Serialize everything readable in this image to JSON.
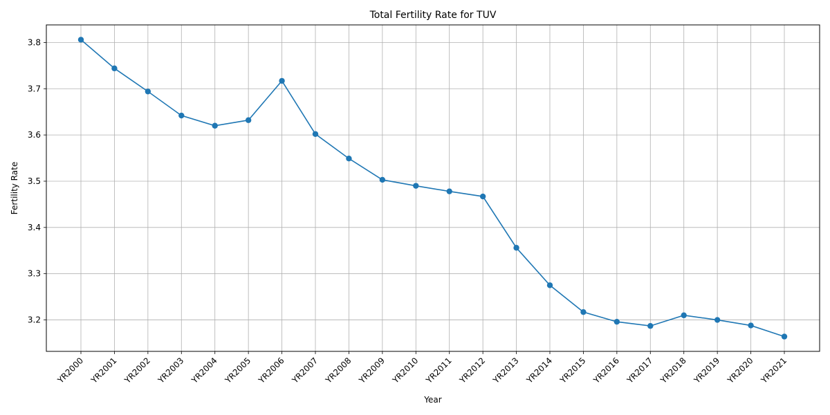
{
  "chart_data": {
    "type": "line",
    "title": "Total Fertility Rate for TUV",
    "xlabel": "Year",
    "ylabel": "Fertility Rate",
    "categories": [
      "YR2000",
      "YR2001",
      "YR2002",
      "YR2003",
      "YR2004",
      "YR2005",
      "YR2006",
      "YR2007",
      "YR2008",
      "YR2009",
      "YR2010",
      "YR2011",
      "YR2012",
      "YR2013",
      "YR2014",
      "YR2015",
      "YR2016",
      "YR2017",
      "YR2018",
      "YR2019",
      "YR2020",
      "YR2021"
    ],
    "series": [
      {
        "values": [
          3.806,
          3.744,
          3.694,
          3.642,
          3.62,
          3.632,
          3.717,
          3.602,
          3.549,
          3.503,
          3.49,
          3.478,
          3.467,
          3.356,
          3.275,
          3.217,
          3.196,
          3.187,
          3.21,
          3.2,
          3.188,
          3.164
        ],
        "color": "#1f77b4",
        "marker": "circle"
      }
    ],
    "yticks": [
      "3.2",
      "3.3",
      "3.4",
      "3.5",
      "3.6",
      "3.7",
      "3.8"
    ],
    "ylim": [
      3.132,
      3.838
    ],
    "grid": true,
    "legend": "none",
    "xtick_rotation": 45
  }
}
